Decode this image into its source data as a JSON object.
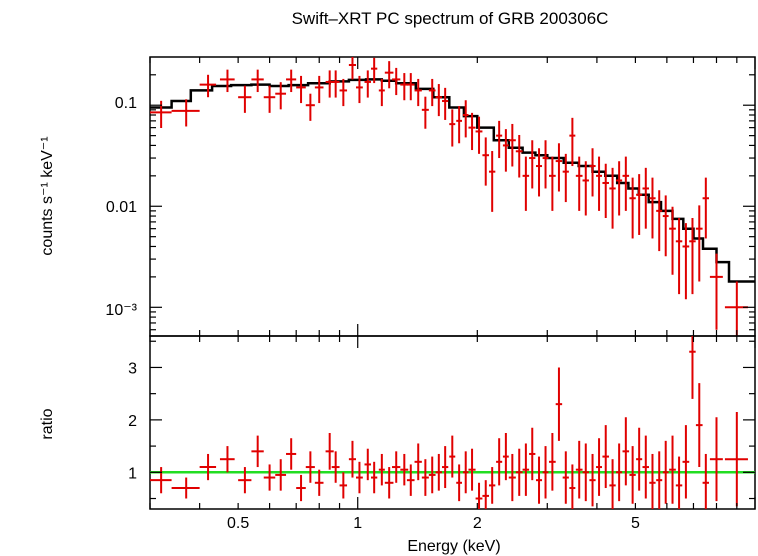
{
  "colors": {
    "data": "#e00000",
    "model": "#000000",
    "ratio_line": "#22dd22",
    "axes": "#000000"
  },
  "chart_data": [
    {
      "panel": "spectrum",
      "type": "scatter",
      "title": "Swift–XRT PC spectrum of GRB 200306C",
      "ylabel": "counts s⁻¹ keV⁻¹",
      "xlabel": "",
      "xscale": "log",
      "yscale": "log",
      "xlim": [
        0.3,
        10
      ],
      "ylim": [
        0.00052,
        0.3
      ],
      "ytick_labels": [
        "0.1",
        "0.01",
        "10⁻³"
      ],
      "grid": false,
      "series": [
        {
          "kind": "data_with_errors",
          "x": [
            0.32,
            0.37,
            0.42,
            0.47,
            0.52,
            0.56,
            0.6,
            0.64,
            0.68,
            0.72,
            0.76,
            0.8,
            0.85,
            0.88,
            0.92,
            0.97,
            1.01,
            1.06,
            1.1,
            1.15,
            1.2,
            1.25,
            1.31,
            1.36,
            1.42,
            1.48,
            1.54,
            1.6,
            1.66,
            1.73,
            1.8,
            1.87,
            1.94,
            2.02,
            2.1,
            2.18,
            2.27,
            2.36,
            2.45,
            2.55,
            2.65,
            2.75,
            2.86,
            2.97,
            3.09,
            3.21,
            3.34,
            3.47,
            3.61,
            3.75,
            3.9,
            4.05,
            4.21,
            4.38,
            4.55,
            4.73,
            4.92,
            5.11,
            5.31,
            5.52,
            5.74,
            5.96,
            6.2,
            6.44,
            6.7,
            6.96,
            7.24,
            7.52,
            8.0,
            9.0
          ],
          "y": [
            0.085,
            0.088,
            0.16,
            0.18,
            0.12,
            0.18,
            0.12,
            0.13,
            0.18,
            0.15,
            0.1,
            0.15,
            0.17,
            0.17,
            0.14,
            0.25,
            0.15,
            0.17,
            0.23,
            0.14,
            0.21,
            0.18,
            0.16,
            0.16,
            0.14,
            0.09,
            0.14,
            0.12,
            0.11,
            0.065,
            0.07,
            0.08,
            0.06,
            0.055,
            0.032,
            0.022,
            0.05,
            0.04,
            0.045,
            0.035,
            0.02,
            0.03,
            0.025,
            0.03,
            0.02,
            0.028,
            0.022,
            0.05,
            0.02,
            0.018,
            0.025,
            0.02,
            0.017,
            0.015,
            0.018,
            0.02,
            0.012,
            0.013,
            0.015,
            0.012,
            0.009,
            0.008,
            0.006,
            0.0045,
            0.004,
            0.0045,
            0.006,
            0.012,
            0.002,
            0.001
          ],
          "xerr": [
            0.02,
            0.03,
            0.02,
            0.02,
            0.02,
            0.02,
            0.02,
            0.02,
            0.02,
            0.02,
            0.02,
            0.02,
            0.02,
            0.02,
            0.02,
            0.02,
            0.02,
            0.02,
            0.02,
            0.02,
            0.03,
            0.03,
            0.03,
            0.03,
            0.03,
            0.03,
            0.03,
            0.03,
            0.03,
            0.03,
            0.03,
            0.03,
            0.04,
            0.04,
            0.04,
            0.04,
            0.04,
            0.04,
            0.05,
            0.05,
            0.05,
            0.05,
            0.05,
            0.05,
            0.06,
            0.06,
            0.06,
            0.06,
            0.07,
            0.07,
            0.07,
            0.07,
            0.08,
            0.08,
            0.08,
            0.09,
            0.09,
            0.09,
            0.1,
            0.1,
            0.1,
            0.1,
            0.12,
            0.12,
            0.13,
            0.13,
            0.14,
            0.14,
            0.3,
            0.6
          ],
          "yerr_frac": [
            0.3,
            0.3,
            0.25,
            0.25,
            0.3,
            0.25,
            0.3,
            0.3,
            0.25,
            0.3,
            0.3,
            0.3,
            0.3,
            0.3,
            0.3,
            0.28,
            0.3,
            0.3,
            0.28,
            0.3,
            0.3,
            0.3,
            0.3,
            0.3,
            0.3,
            0.35,
            0.3,
            0.35,
            0.35,
            0.4,
            0.4,
            0.4,
            0.4,
            0.4,
            0.5,
            0.6,
            0.4,
            0.45,
            0.45,
            0.45,
            0.55,
            0.5,
            0.5,
            0.5,
            0.55,
            0.5,
            0.5,
            0.5,
            0.55,
            0.55,
            0.5,
            0.55,
            0.55,
            0.6,
            0.55,
            0.55,
            0.6,
            0.6,
            0.6,
            0.6,
            0.6,
            0.6,
            0.65,
            0.7,
            0.7,
            0.7,
            0.7,
            0.6,
            0.7,
            0.8
          ]
        },
        {
          "kind": "model_step",
          "x": [
            0.3,
            0.34,
            0.38,
            0.43,
            0.48,
            0.54,
            0.6,
            0.67,
            0.75,
            0.85,
            0.95,
            1.05,
            1.15,
            1.25,
            1.4,
            1.55,
            1.7,
            1.85,
            2.0,
            2.2,
            2.4,
            2.6,
            2.8,
            3.0,
            3.3,
            3.6,
            3.9,
            4.2,
            4.5,
            4.8,
            5.1,
            5.4,
            5.8,
            6.2,
            6.6,
            7.0,
            7.4,
            8.0,
            8.6,
            10.0
          ],
          "y": [
            0.095,
            0.11,
            0.14,
            0.155,
            0.158,
            0.16,
            0.155,
            0.158,
            0.165,
            0.172,
            0.178,
            0.18,
            0.175,
            0.165,
            0.145,
            0.12,
            0.095,
            0.078,
            0.06,
            0.045,
            0.038,
            0.034,
            0.032,
            0.03,
            0.027,
            0.025,
            0.022,
            0.02,
            0.017,
            0.015,
            0.013,
            0.011,
            0.009,
            0.0075,
            0.006,
            0.0048,
            0.0038,
            0.0028,
            0.0018,
            0.0008
          ]
        }
      ]
    },
    {
      "panel": "ratio",
      "type": "scatter",
      "xlabel": "Energy (keV)",
      "ylabel": "ratio",
      "xscale": "log",
      "yscale": "linear",
      "xlim": [
        0.3,
        10
      ],
      "ylim": [
        0.3,
        3.6
      ],
      "x_tick_labels": [
        {
          "v": 0.5,
          "t": "0.5"
        },
        {
          "v": 1,
          "t": "1"
        },
        {
          "v": 2,
          "t": "2"
        },
        {
          "v": 5,
          "t": "5"
        }
      ],
      "y_tick_labels": [
        {
          "v": 1,
          "t": "1"
        },
        {
          "v": 2,
          "t": "2"
        },
        {
          "v": 3,
          "t": "3"
        }
      ],
      "reference_line": 1,
      "series": [
        {
          "kind": "data_with_errors",
          "x": [
            0.32,
            0.37,
            0.42,
            0.47,
            0.52,
            0.56,
            0.6,
            0.64,
            0.68,
            0.72,
            0.76,
            0.8,
            0.85,
            0.88,
            0.92,
            0.97,
            1.01,
            1.06,
            1.1,
            1.15,
            1.2,
            1.25,
            1.31,
            1.36,
            1.42,
            1.48,
            1.54,
            1.6,
            1.66,
            1.73,
            1.8,
            1.87,
            1.94,
            2.02,
            2.1,
            2.18,
            2.27,
            2.36,
            2.45,
            2.55,
            2.65,
            2.75,
            2.86,
            2.97,
            3.09,
            3.21,
            3.34,
            3.47,
            3.61,
            3.75,
            3.9,
            4.05,
            4.21,
            4.38,
            4.55,
            4.73,
            4.92,
            5.11,
            5.31,
            5.52,
            5.74,
            5.96,
            6.2,
            6.44,
            6.7,
            6.96,
            7.24,
            7.52,
            8.0,
            9.0
          ],
          "y": [
            0.85,
            0.7,
            1.1,
            1.25,
            0.85,
            1.4,
            0.9,
            0.95,
            1.35,
            0.7,
            1.1,
            0.8,
            1.4,
            1.1,
            0.75,
            1.25,
            0.9,
            1.15,
            0.9,
            1.05,
            0.8,
            1.1,
            1.05,
            0.85,
            1.2,
            0.9,
            0.95,
            1.0,
            1.1,
            1.3,
            0.8,
            1.0,
            1.05,
            0.5,
            0.55,
            0.75,
            1.2,
            1.3,
            0.9,
            1.0,
            1.05,
            1.35,
            0.85,
            1.0,
            1.2,
            2.3,
            0.9,
            0.7,
            1.05,
            1.0,
            0.85,
            1.1,
            1.3,
            0.75,
            1.0,
            1.4,
            0.95,
            1.25,
            1.1,
            0.8,
            0.85,
            1.0,
            1.05,
            0.75,
            1.2,
            3.3,
            1.9,
            0.8,
            1.25,
            1.25
          ],
          "yerr": [
            0.25,
            0.2,
            0.25,
            0.25,
            0.25,
            0.3,
            0.25,
            0.3,
            0.3,
            0.25,
            0.3,
            0.25,
            0.35,
            0.3,
            0.25,
            0.35,
            0.3,
            0.3,
            0.3,
            0.3,
            0.3,
            0.3,
            0.3,
            0.3,
            0.35,
            0.35,
            0.35,
            0.35,
            0.4,
            0.4,
            0.35,
            0.4,
            0.4,
            0.3,
            0.3,
            0.35,
            0.45,
            0.45,
            0.45,
            0.45,
            0.5,
            0.5,
            0.45,
            0.5,
            0.55,
            0.7,
            0.5,
            0.45,
            0.55,
            0.55,
            0.5,
            0.55,
            0.6,
            0.5,
            0.55,
            0.65,
            0.55,
            0.6,
            0.6,
            0.55,
            0.55,
            0.6,
            0.65,
            0.55,
            0.7,
            0.9,
            0.8,
            0.55,
            0.8,
            0.9
          ]
        }
      ]
    }
  ]
}
